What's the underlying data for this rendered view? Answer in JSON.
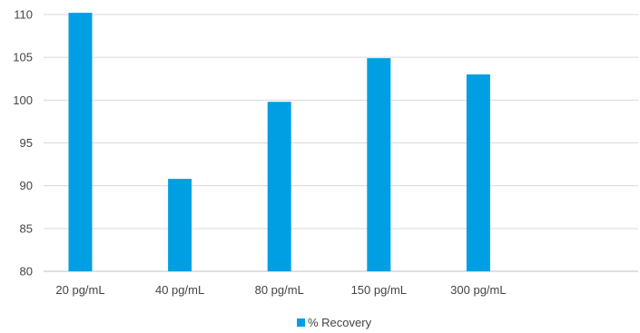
{
  "chart_data": {
    "type": "bar",
    "categories": [
      "20 pg/mL",
      "40 pg/mL",
      "80 pg/mL",
      "150 pg/mL",
      "300 pg/mL"
    ],
    "series": [
      {
        "name": "% Recovery",
        "values": [
          110.2,
          90.8,
          99.8,
          104.9,
          103.0
        ]
      }
    ],
    "ylim": [
      80,
      110
    ],
    "yticks": [
      80,
      85,
      90,
      95,
      100,
      105,
      110
    ],
    "grid": true,
    "legend": "bottom-center",
    "colors": {
      "bar": "#009fe3",
      "grid": "#d9d9d9",
      "axis": "#bfbfbf"
    }
  }
}
